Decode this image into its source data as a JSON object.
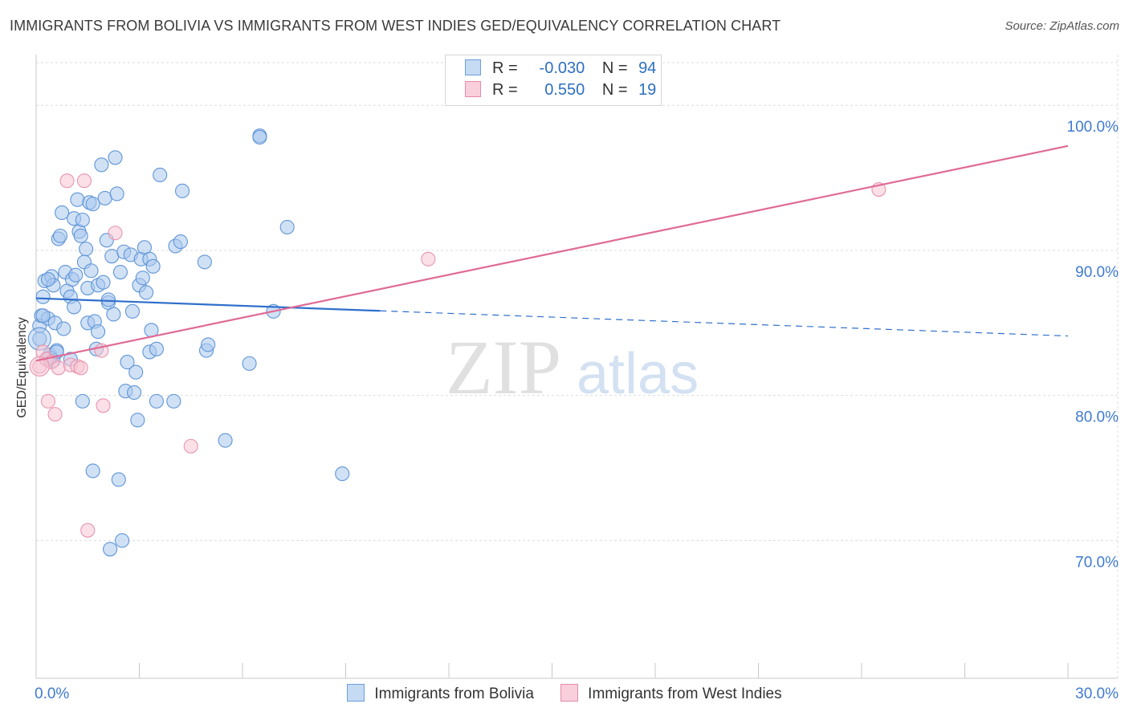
{
  "title": "IMMIGRANTS FROM BOLIVIA VS IMMIGRANTS FROM WEST INDIES GED/EQUIVALENCY CORRELATION CHART",
  "source": "Source: ZipAtlas.com",
  "watermark": {
    "zip": "ZIP",
    "atlas": "atlas"
  },
  "legend": {
    "rows": [
      {
        "r_label": "R =",
        "r_value": "-0.030",
        "n_label": "N =",
        "n_value": "94",
        "color": "#9dc3ee",
        "border": "#6b9fdb"
      },
      {
        "r_label": "R =",
        "r_value": "0.550",
        "n_label": "N =",
        "n_value": "19",
        "color": "#f6bccd",
        "border": "#e58aa8"
      }
    ]
  },
  "colors": {
    "bolivia_fill": "#a9c8ee",
    "bolivia_stroke": "#5f95d6",
    "bolivia_line": "#2f6fcb",
    "westindies_fill": "#f7c6d4",
    "westindies_stroke": "#e894b0",
    "westindies_line": "#e06a95",
    "tick_label": "#3f7ad1",
    "grid": "#dcdcdc"
  },
  "chart_data": {
    "type": "scatter",
    "title": "IMMIGRANTS FROM BOLIVIA VS IMMIGRANTS FROM WEST INDIES GED/EQUIVALENCY CORRELATION CHART",
    "xlabel": "",
    "ylabel": "GED/Equivalency",
    "xlim": [
      0,
      30
    ],
    "ylim": [
      60.5,
      103.5
    ],
    "x_tick_labels": [
      "0.0%",
      "30.0%"
    ],
    "y_ticks": [
      70,
      80,
      90,
      100
    ],
    "y_tick_labels": [
      "70.0%",
      "80.0%",
      "90.0%",
      "100.0%"
    ],
    "grid": true,
    "legend_position": "bottom",
    "series": [
      {
        "name": "Immigrants from Bolivia",
        "r": -0.03,
        "n": 94,
        "trend": {
          "x": [
            0.0,
            30.0
          ],
          "y": [
            86.7,
            84.1
          ],
          "solid_until_x": 10.0
        },
        "points": [
          [
            0.1,
            83.9
          ],
          [
            0.1,
            84.8
          ],
          [
            0.15,
            85.5
          ],
          [
            0.2,
            86.8
          ],
          [
            0.25,
            87.9
          ],
          [
            0.3,
            82.5
          ],
          [
            0.35,
            85.3
          ],
          [
            0.4,
            82.8
          ],
          [
            0.45,
            88.2
          ],
          [
            0.5,
            87.6
          ],
          [
            0.55,
            85.0
          ],
          [
            0.6,
            83.1
          ],
          [
            0.65,
            90.8
          ],
          [
            0.7,
            91.0
          ],
          [
            0.75,
            92.6
          ],
          [
            0.8,
            84.6
          ],
          [
            0.85,
            88.5
          ],
          [
            0.9,
            87.2
          ],
          [
            1.0,
            86.8
          ],
          [
            1.05,
            88.0
          ],
          [
            1.1,
            92.2
          ],
          [
            1.1,
            86.1
          ],
          [
            1.15,
            88.3
          ],
          [
            1.2,
            93.5
          ],
          [
            1.25,
            91.3
          ],
          [
            1.3,
            91.0
          ],
          [
            1.35,
            79.6
          ],
          [
            1.35,
            92.1
          ],
          [
            1.4,
            89.2
          ],
          [
            1.45,
            90.1
          ],
          [
            1.5,
            85.0
          ],
          [
            1.5,
            87.4
          ],
          [
            1.55,
            93.3
          ],
          [
            1.6,
            88.6
          ],
          [
            1.65,
            74.8
          ],
          [
            1.7,
            85.1
          ],
          [
            1.75,
            83.2
          ],
          [
            1.8,
            84.4
          ],
          [
            1.8,
            87.6
          ],
          [
            1.9,
            95.9
          ],
          [
            1.95,
            87.8
          ],
          [
            2.0,
            93.6
          ],
          [
            2.05,
            90.7
          ],
          [
            2.1,
            86.4
          ],
          [
            2.15,
            69.4
          ],
          [
            2.2,
            89.6
          ],
          [
            2.25,
            85.6
          ],
          [
            2.3,
            96.4
          ],
          [
            2.35,
            93.9
          ],
          [
            2.4,
            74.2
          ],
          [
            2.45,
            88.5
          ],
          [
            2.5,
            70.0
          ],
          [
            2.55,
            89.9
          ],
          [
            2.6,
            80.3
          ],
          [
            2.65,
            82.3
          ],
          [
            2.75,
            89.7
          ],
          [
            2.8,
            85.8
          ],
          [
            2.85,
            80.2
          ],
          [
            2.9,
            81.6
          ],
          [
            2.95,
            78.3
          ],
          [
            3.0,
            87.6
          ],
          [
            3.05,
            89.4
          ],
          [
            3.1,
            88.1
          ],
          [
            3.15,
            90.2
          ],
          [
            3.2,
            87.1
          ],
          [
            3.3,
            83.0
          ],
          [
            3.3,
            89.4
          ],
          [
            3.35,
            84.5
          ],
          [
            3.4,
            88.9
          ],
          [
            3.5,
            83.2
          ],
          [
            3.5,
            79.6
          ],
          [
            3.6,
            95.2
          ],
          [
            4.0,
            79.6
          ],
          [
            4.05,
            90.3
          ],
          [
            4.2,
            90.6
          ],
          [
            4.25,
            94.1
          ],
          [
            4.9,
            89.2
          ],
          [
            4.95,
            83.1
          ],
          [
            5.0,
            83.5
          ],
          [
            5.5,
            76.9
          ],
          [
            6.5,
            97.9
          ],
          [
            6.5,
            97.8
          ],
          [
            6.2,
            82.2
          ],
          [
            6.9,
            85.8
          ],
          [
            7.3,
            91.6
          ],
          [
            8.9,
            74.6
          ],
          [
            0.5,
            82.4
          ],
          [
            1.0,
            82.5
          ],
          [
            0.2,
            85.5
          ],
          [
            0.35,
            88.0
          ],
          [
            1.65,
            93.2
          ],
          [
            0.4,
            82.6
          ],
          [
            2.1,
            86.6
          ],
          [
            0.6,
            83.0
          ]
        ]
      },
      {
        "name": "Immigrants from West Indies",
        "r": 0.55,
        "n": 19,
        "trend": {
          "x": [
            0.0,
            30.0
          ],
          "y": [
            82.4,
            97.2
          ]
        },
        "points": [
          [
            0.1,
            82.0
          ],
          [
            0.2,
            83.0
          ],
          [
            0.3,
            82.5
          ],
          [
            0.35,
            79.6
          ],
          [
            0.45,
            82.3
          ],
          [
            0.55,
            78.7
          ],
          [
            0.65,
            81.9
          ],
          [
            0.9,
            94.8
          ],
          [
            1.0,
            82.1
          ],
          [
            1.2,
            82.0
          ],
          [
            1.3,
            81.9
          ],
          [
            1.4,
            94.8
          ],
          [
            1.5,
            70.7
          ],
          [
            1.9,
            83.1
          ],
          [
            1.95,
            79.3
          ],
          [
            2.3,
            91.2
          ],
          [
            4.5,
            76.5
          ],
          [
            11.4,
            89.4
          ],
          [
            24.5,
            94.2
          ]
        ]
      }
    ]
  },
  "bottom_legend": {
    "series_a": "Immigrants from Bolivia",
    "series_b": "Immigrants from West Indies"
  }
}
